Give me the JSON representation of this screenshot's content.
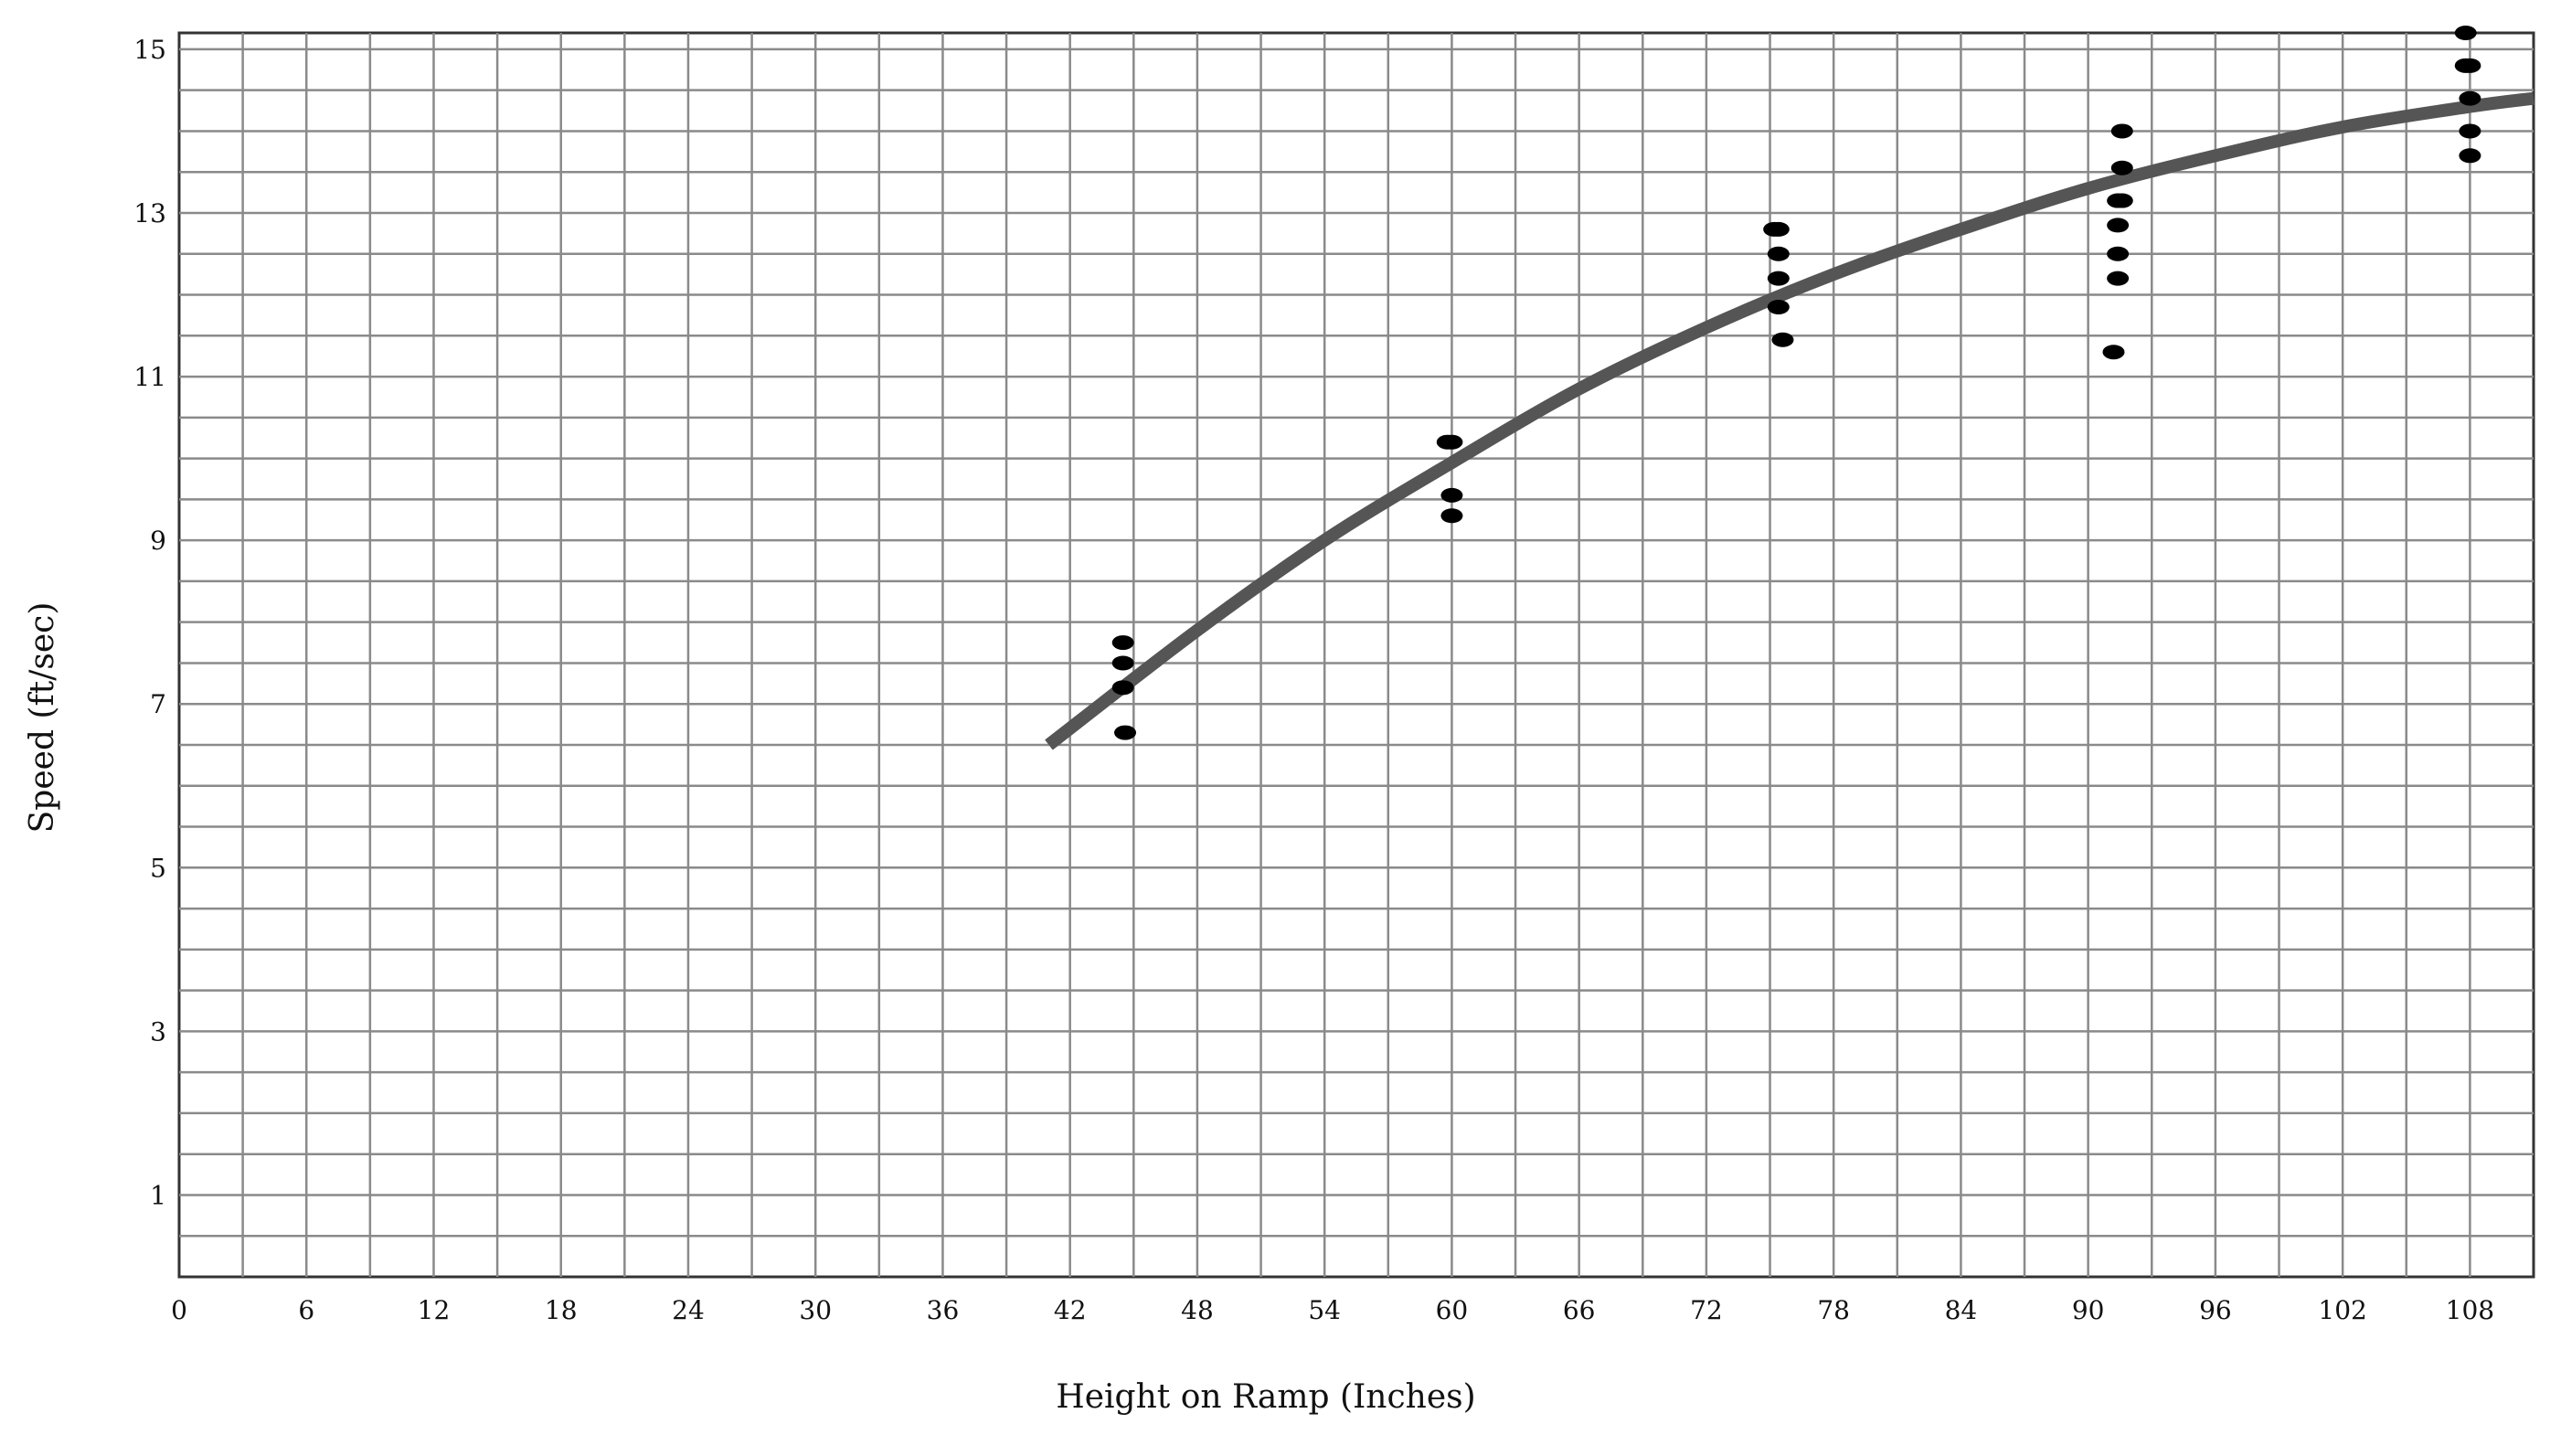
{
  "chart_data": {
    "type": "scatter",
    "title": "",
    "xlabel": "Height on Ramp (Inches)",
    "ylabel": "Speed (ft/sec)",
    "xlim": [
      0,
      111
    ],
    "ylim": [
      0,
      15.2
    ],
    "x_ticks": [
      0,
      6,
      12,
      18,
      24,
      30,
      36,
      42,
      48,
      54,
      60,
      66,
      72,
      78,
      84,
      90,
      96,
      102,
      108
    ],
    "x_tick_labels": [
      "0",
      "6",
      "12",
      "18",
      "24",
      "30",
      "36",
      "42",
      "48",
      "54",
      "60",
      "66",
      "72",
      "78",
      "84",
      "90",
      "96",
      "102",
      "108"
    ],
    "y_ticks": [
      1,
      3,
      5,
      7,
      9,
      11,
      13,
      15
    ],
    "y_tick_labels": [
      "1",
      "3",
      "5",
      "7",
      "9",
      "11",
      "13",
      "15"
    ],
    "grid": true,
    "grid_x_step": 3,
    "grid_y_step": 0.5,
    "colors": {
      "points": "#000000",
      "curve": "#555555",
      "grid": "#8a8a8a",
      "axis": "#333333"
    },
    "series": [
      {
        "type": "scatter",
        "points": [
          {
            "x": 44.5,
            "y": 7.75
          },
          {
            "x": 44.5,
            "y": 7.5
          },
          {
            "x": 44.5,
            "y": 7.2
          },
          {
            "x": 44.6,
            "y": 6.65
          },
          {
            "x": 59.8,
            "y": 10.2
          },
          {
            "x": 60.0,
            "y": 10.2
          },
          {
            "x": 60.0,
            "y": 9.55
          },
          {
            "x": 60.0,
            "y": 9.3
          },
          {
            "x": 75.2,
            "y": 12.8
          },
          {
            "x": 75.4,
            "y": 12.8
          },
          {
            "x": 75.4,
            "y": 12.5
          },
          {
            "x": 75.4,
            "y": 12.2
          },
          {
            "x": 75.4,
            "y": 11.85
          },
          {
            "x": 75.6,
            "y": 11.45
          },
          {
            "x": 91.6,
            "y": 14.0
          },
          {
            "x": 91.6,
            "y": 13.55
          },
          {
            "x": 91.4,
            "y": 13.15
          },
          {
            "x": 91.6,
            "y": 13.15
          },
          {
            "x": 91.4,
            "y": 12.85
          },
          {
            "x": 91.4,
            "y": 12.5
          },
          {
            "x": 91.4,
            "y": 12.2
          },
          {
            "x": 91.2,
            "y": 11.3
          },
          {
            "x": 107.8,
            "y": 15.2
          },
          {
            "x": 107.8,
            "y": 14.8
          },
          {
            "x": 108.0,
            "y": 14.8
          },
          {
            "x": 108.0,
            "y": 14.4
          },
          {
            "x": 108.0,
            "y": 14.0
          },
          {
            "x": 108.0,
            "y": 13.7
          }
        ]
      },
      {
        "type": "line",
        "smooth": true,
        "points": [
          {
            "x": 41,
            "y": 6.5
          },
          {
            "x": 48,
            "y": 7.9
          },
          {
            "x": 54,
            "y": 9.0
          },
          {
            "x": 60,
            "y": 9.95
          },
          {
            "x": 66,
            "y": 10.85
          },
          {
            "x": 72,
            "y": 11.6
          },
          {
            "x": 78,
            "y": 12.25
          },
          {
            "x": 84,
            "y": 12.8
          },
          {
            "x": 90,
            "y": 13.3
          },
          {
            "x": 96,
            "y": 13.7
          },
          {
            "x": 102,
            "y": 14.05
          },
          {
            "x": 108,
            "y": 14.3
          },
          {
            "x": 111,
            "y": 14.4
          }
        ]
      }
    ]
  }
}
